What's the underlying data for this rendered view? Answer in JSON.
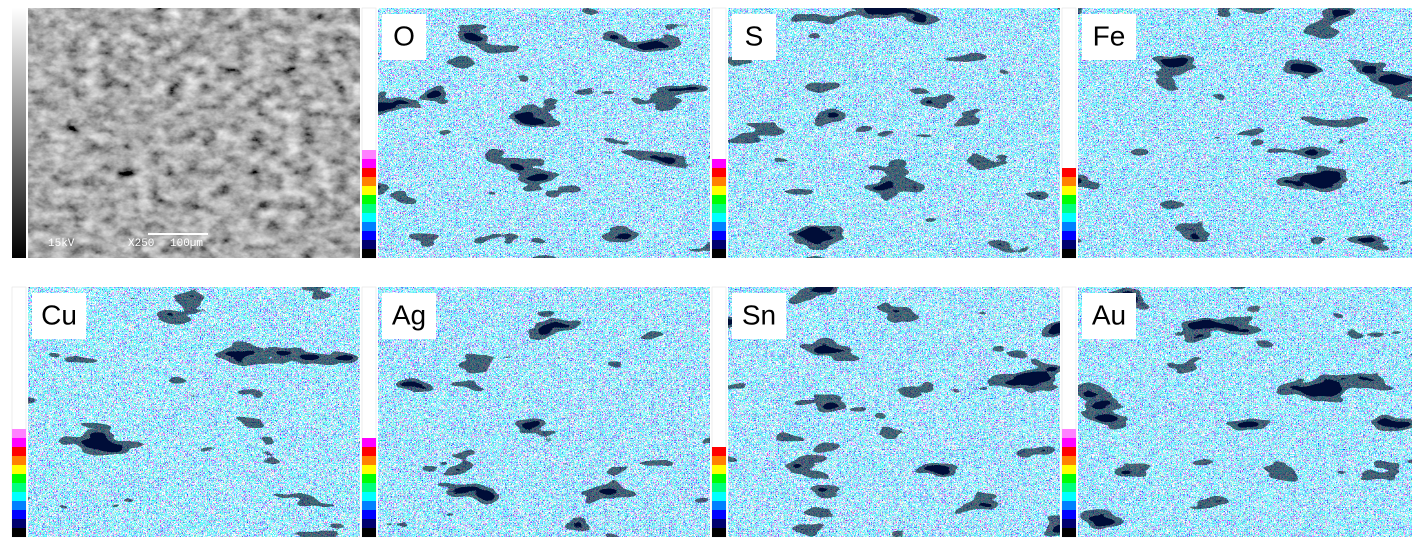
{
  "sem": {
    "voltage": "15kV",
    "magnification": "X250",
    "scale": "100µm"
  },
  "maps": [
    {
      "element": "O"
    },
    {
      "element": "S"
    },
    {
      "element": "Fe"
    },
    {
      "element": "Cu"
    },
    {
      "element": "Ag"
    },
    {
      "element": "Sn"
    },
    {
      "element": "Au"
    }
  ]
}
